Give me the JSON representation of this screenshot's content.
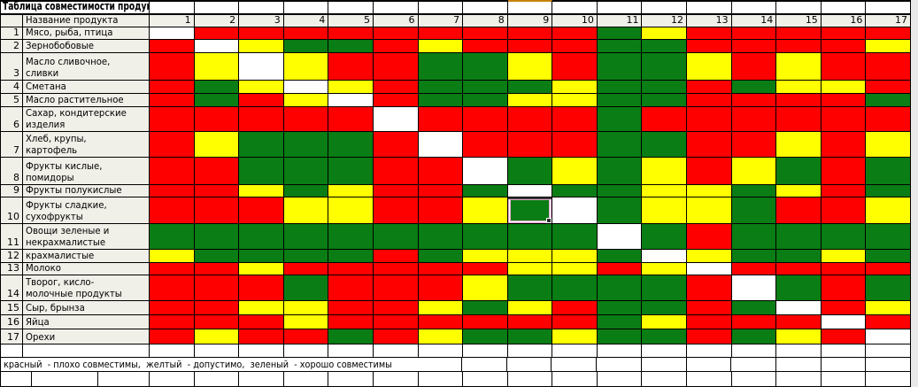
{
  "title": "Таблица совместимости продуктов:",
  "header": {
    "row_number_col": "",
    "name_col": "Название продукта",
    "columns": [
      "1",
      "2",
      "3",
      "4",
      "5",
      "6",
      "7",
      "8",
      "9",
      "10",
      "11",
      "12",
      "13",
      "14",
      "15",
      "16",
      "17"
    ]
  },
  "legend": "красный  - плохо совместимы,  желтый  - допустимо,  зеленый  - хорошо совместимы",
  "colors": {
    "red": "#fe0000",
    "yellow": "#ffff00",
    "green": "#0a7d14",
    "white": "#ffffff",
    "label_bg": "#f0efe8",
    "grid_border": "#000000",
    "col9_title_top_border": "#c8820a"
  },
  "color_codes": {
    "R": "red",
    "Y": "yellow",
    "G": "green",
    "W": "white"
  },
  "selection": {
    "row": 10,
    "col": 9
  },
  "rows": [
    {
      "num": "1",
      "label": "Мясо, рыба, птица",
      "cells": [
        "W",
        "R",
        "R",
        "R",
        "R",
        "R",
        "R",
        "R",
        "R",
        "R",
        "G",
        "Y",
        "R",
        "R",
        "R",
        "R",
        "R"
      ]
    },
    {
      "num": "2",
      "label": "Зернобобовые",
      "cells": [
        "R",
        "W",
        "Y",
        "G",
        "G",
        "R",
        "Y",
        "R",
        "R",
        "R",
        "G",
        "G",
        "R",
        "R",
        "R",
        "R",
        "Y"
      ]
    },
    {
      "num": "3",
      "label": "Масло сливочное,\nсливки",
      "cells": [
        "R",
        "Y",
        "W",
        "Y",
        "R",
        "R",
        "G",
        "G",
        "Y",
        "R",
        "G",
        "G",
        "Y",
        "R",
        "Y",
        "R",
        "R"
      ]
    },
    {
      "num": "4",
      "label": "Сметана",
      "cells": [
        "R",
        "G",
        "Y",
        "W",
        "Y",
        "R",
        "G",
        "G",
        "G",
        "Y",
        "G",
        "G",
        "R",
        "G",
        "Y",
        "Y",
        "R"
      ]
    },
    {
      "num": "5",
      "label": "Масло растительное",
      "cells": [
        "R",
        "G",
        "R",
        "Y",
        "W",
        "R",
        "G",
        "G",
        "Y",
        "Y",
        "G",
        "G",
        "R",
        "R",
        "R",
        "R",
        "G"
      ]
    },
    {
      "num": "6",
      "label": "Сахар, кондитерские\nизделия",
      "cells": [
        "R",
        "R",
        "R",
        "R",
        "R",
        "W",
        "R",
        "R",
        "R",
        "R",
        "G",
        "R",
        "R",
        "R",
        "R",
        "R",
        "R"
      ]
    },
    {
      "num": "7",
      "label": "Хлеб, крупы,\nкартофель",
      "cells": [
        "R",
        "Y",
        "G",
        "G",
        "G",
        "R",
        "W",
        "R",
        "R",
        "R",
        "G",
        "G",
        "R",
        "R",
        "Y",
        "R",
        "Y"
      ]
    },
    {
      "num": "8",
      "label": "Фрукты кислые,\nпомидоры",
      "cells": [
        "R",
        "R",
        "G",
        "G",
        "G",
        "R",
        "R",
        "W",
        "G",
        "Y",
        "G",
        "Y",
        "R",
        "Y",
        "G",
        "R",
        "G"
      ]
    },
    {
      "num": "9",
      "label": "Фрукты полукислые",
      "cells": [
        "R",
        "R",
        "Y",
        "G",
        "Y",
        "R",
        "R",
        "G",
        "W",
        "G",
        "G",
        "Y",
        "Y",
        "G",
        "Y",
        "R",
        "G"
      ]
    },
    {
      "num": "10",
      "label": "Фрукты сладкие,\nсухофрукты",
      "cells": [
        "R",
        "R",
        "R",
        "Y",
        "Y",
        "R",
        "R",
        "Y",
        "G",
        "W",
        "G",
        "Y",
        "Y",
        "G",
        "R",
        "R",
        "Y"
      ]
    },
    {
      "num": "11",
      "label": "Овощи зеленые и\nнекрахмалистые",
      "cells": [
        "G",
        "G",
        "G",
        "G",
        "G",
        "G",
        "G",
        "G",
        "G",
        "G",
        "W",
        "G",
        "R",
        "G",
        "G",
        "G",
        "G"
      ]
    },
    {
      "num": "12",
      "label": "крахмалистые",
      "cells": [
        "Y",
        "G",
        "G",
        "G",
        "G",
        "R",
        "G",
        "Y",
        "Y",
        "Y",
        "G",
        "W",
        "Y",
        "G",
        "G",
        "Y",
        "G"
      ]
    },
    {
      "num": "13",
      "label": "Молоко",
      "cells": [
        "R",
        "R",
        "Y",
        "R",
        "R",
        "R",
        "R",
        "R",
        "Y",
        "Y",
        "R",
        "Y",
        "W",
        "R",
        "R",
        "R",
        "R"
      ]
    },
    {
      "num": "14",
      "label": "Творог, кисло-\nмолочные продукты",
      "cells": [
        "R",
        "R",
        "R",
        "G",
        "R",
        "R",
        "R",
        "Y",
        "G",
        "G",
        "G",
        "G",
        "R",
        "W",
        "G",
        "R",
        "G"
      ]
    },
    {
      "num": "15",
      "label": "Сыр, брынза",
      "cells": [
        "R",
        "R",
        "Y",
        "Y",
        "R",
        "R",
        "Y",
        "G",
        "Y",
        "R",
        "G",
        "G",
        "R",
        "G",
        "W",
        "R",
        "Y"
      ]
    },
    {
      "num": "16",
      "label": "Яйца",
      "cells": [
        "R",
        "R",
        "R",
        "Y",
        "R",
        "R",
        "R",
        "R",
        "R",
        "R",
        "G",
        "Y",
        "R",
        "R",
        "R",
        "W",
        "R"
      ]
    },
    {
      "num": "17",
      "label": "Орехи",
      "cells": [
        "R",
        "Y",
        "R",
        "R",
        "G",
        "R",
        "Y",
        "G",
        "G",
        "Y",
        "G",
        "G",
        "R",
        "G",
        "Y",
        "R",
        "W"
      ]
    }
  ]
}
